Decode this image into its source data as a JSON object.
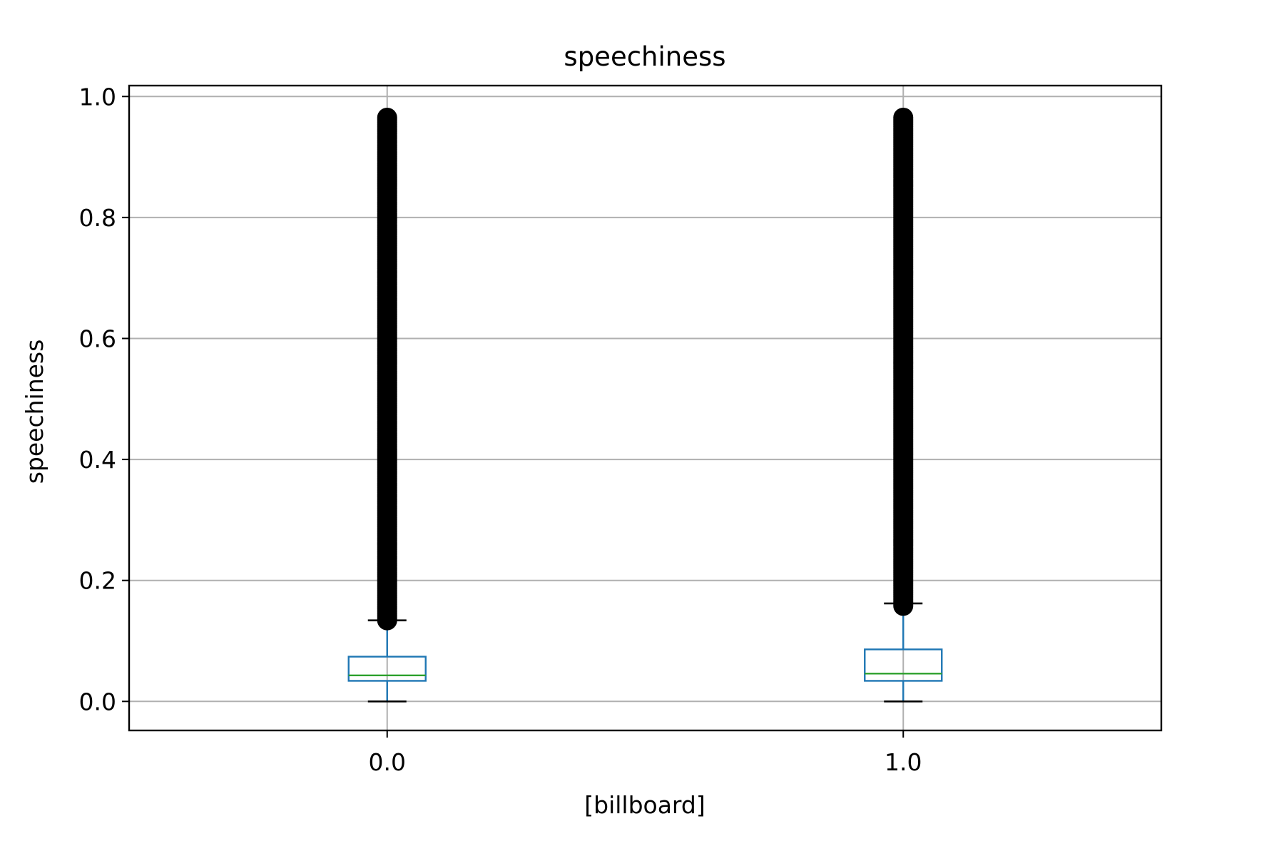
{
  "chart_data": {
    "type": "box",
    "title": "speechiness",
    "xlabel": "[billboard]",
    "ylabel": "speechiness",
    "categories": [
      "0.0",
      "1.0"
    ],
    "ylim": [
      -0.048,
      1.018
    ],
    "yticks": [
      0.0,
      0.2,
      0.4,
      0.6,
      0.8,
      1.0
    ],
    "ytick_labels": [
      "0.0",
      "0.2",
      "0.4",
      "0.6",
      "0.8",
      "1.0"
    ],
    "grid": true,
    "boxes": [
      {
        "category": "0.0",
        "whisker_low": 0.0,
        "q1": 0.034,
        "median": 0.043,
        "q3": 0.074,
        "whisker_high": 0.134,
        "outlier_range": [
          0.134,
          0.965
        ]
      },
      {
        "category": "1.0",
        "whisker_low": 0.0,
        "q1": 0.034,
        "median": 0.046,
        "q3": 0.086,
        "whisker_high": 0.162,
        "outlier_range": [
          0.158,
          0.965
        ]
      }
    ],
    "colors": {
      "box": "#1f77b4",
      "median": "#2ca02c",
      "outlier": "#000000",
      "cap": "#000000",
      "grid": "#b0b0b0"
    }
  }
}
